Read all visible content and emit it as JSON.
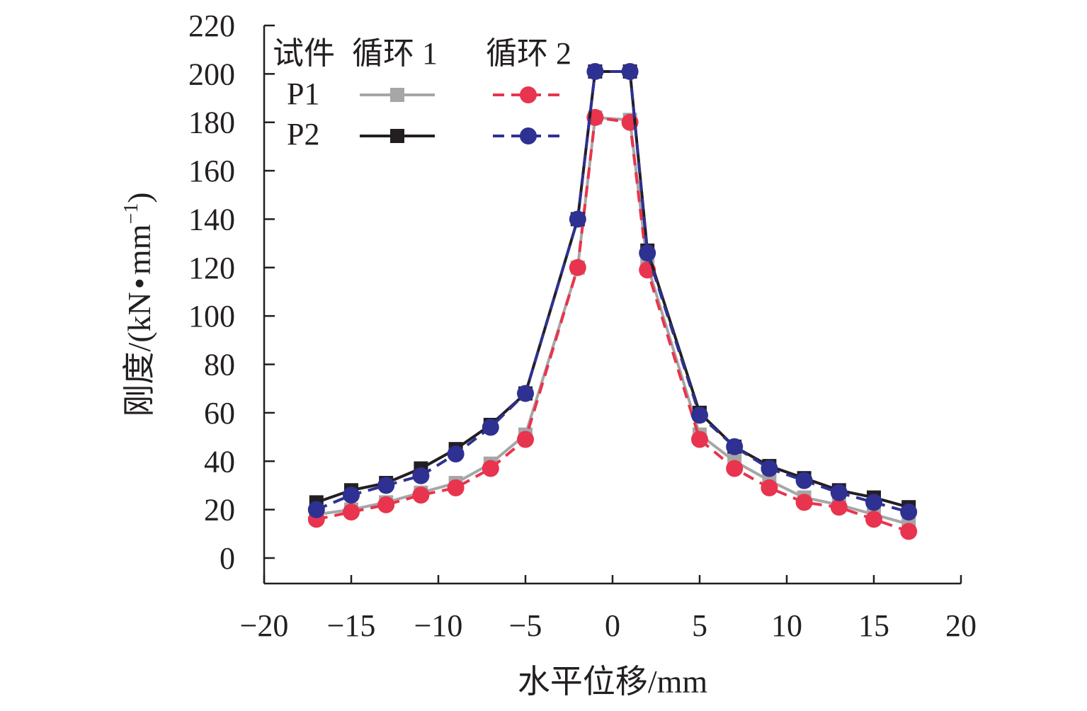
{
  "chart_data": {
    "type": "line",
    "xlabel": "水平位移/mm",
    "ylabel": "刚度/(kN·mm⁻¹)",
    "ylabel_main": "刚度/(kN",
    "ylabel_dot": "•",
    "ylabel_unit": "mm",
    "ylabel_exp": "−1",
    "ylabel_close": ")",
    "xlim": [
      -20,
      20
    ],
    "ylim": [
      0,
      220
    ],
    "x_ticks": [
      -20,
      -15,
      -10,
      -5,
      0,
      5,
      10,
      15,
      20
    ],
    "x_tick_labels": [
      "−20",
      "−15",
      "−10",
      "−5",
      "0",
      "5",
      "10",
      "15",
      "20"
    ],
    "y_ticks": [
      0,
      20,
      40,
      60,
      80,
      100,
      120,
      140,
      160,
      180,
      200,
      220
    ],
    "y_tick_labels": [
      "0",
      "20",
      "40",
      "60",
      "80",
      "100",
      "120",
      "140",
      "160",
      "180",
      "200",
      "220"
    ],
    "grid": false,
    "legend": {
      "placement": "top-left",
      "header_specimen": "试件",
      "header_cycle1": "循环 1",
      "header_cycle2": "循环 2",
      "rows": [
        "P1",
        "P2"
      ]
    },
    "x": [
      -17,
      -15,
      -13,
      -11,
      -9,
      -7,
      -5,
      -2,
      -1,
      1,
      2,
      5,
      7,
      9,
      11,
      13,
      15,
      17
    ],
    "series": [
      {
        "specimen": "P1",
        "cycle": "循环 1",
        "color": "#a6a6a6",
        "marker": "square",
        "dash": "solid",
        "values": [
          18,
          20,
          23,
          27,
          31,
          39,
          51,
          120,
          182,
          181,
          121,
          51,
          40,
          32,
          25,
          22,
          18,
          14
        ]
      },
      {
        "specimen": "P1",
        "cycle": "循环 2",
        "color": "#e8344e",
        "marker": "circle",
        "dash": "dashed",
        "values": [
          16,
          19,
          22,
          26,
          29,
          37,
          49,
          120,
          182,
          180,
          119,
          49,
          37,
          29,
          23,
          21,
          16,
          11
        ]
      },
      {
        "specimen": "P2",
        "cycle": "循环 1",
        "color": "#231f20",
        "marker": "square",
        "dash": "solid",
        "values": [
          23,
          28,
          31,
          37,
          45,
          55,
          68,
          140,
          201,
          201,
          127,
          60,
          46,
          38,
          33,
          28,
          25,
          21
        ]
      },
      {
        "specimen": "P2",
        "cycle": "循环 2",
        "color": "#2e3192",
        "marker": "circle",
        "dash": "dashed",
        "values": [
          20,
          26,
          30,
          34,
          43,
          54,
          68,
          140,
          201,
          201,
          126,
          59,
          46,
          37,
          32,
          27,
          23,
          19
        ]
      }
    ]
  }
}
